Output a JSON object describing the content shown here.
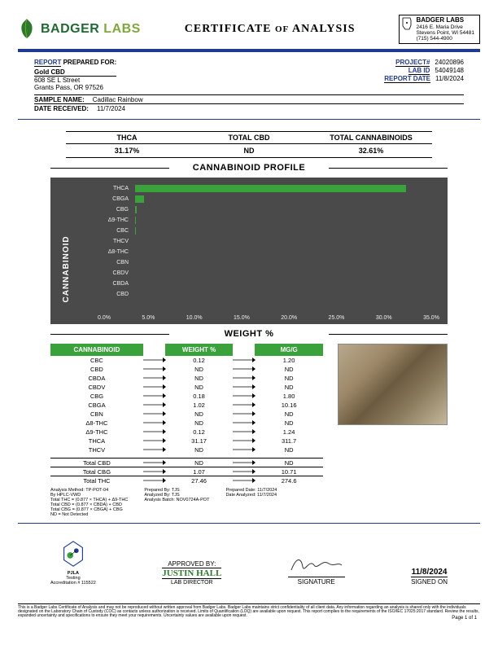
{
  "header": {
    "brand1": "BADGER",
    "brand2": "LABS",
    "title_pre": "CERTIFICATE",
    "title_of": "OF",
    "title_post": "ANALYSIS",
    "addr_name": "BADGER LABS",
    "addr_l1": "2416 E. Maria Drive",
    "addr_l2": "Stevens Point, WI 54481",
    "addr_l3": "(715) 544-4900",
    "colors": {
      "blue": "#1f3a93",
      "green": "#3aa23a"
    }
  },
  "report": {
    "label": "REPORT",
    "prepared": "PREPARED FOR:",
    "client": "Gold CBD",
    "addr1": "608 SE L Street",
    "addr2": "Grants Pass, OR 97526",
    "project_lab": "PROJECT#",
    "project_val": "24020896",
    "labid_lab": "LAB ID",
    "labid_val": "54049148",
    "date_lab": "REPORT DATE",
    "date_val": "11/8/2024",
    "sample_lab": "SAMPLE NAME:",
    "sample_val": "Cadillac Rainbow",
    "recv_lab": "DATE RECEIVED:",
    "recv_val": "11/7/2024"
  },
  "metrics": [
    {
      "h": "THCA",
      "v": "31.17%"
    },
    {
      "h": "TOTAL CBD",
      "v": "ND"
    },
    {
      "h": "TOTAL CANNABINOIDS",
      "v": "32.61%"
    }
  ],
  "chart": {
    "title": "CANNABINOID PROFILE",
    "ylabel": "CANNABINOID",
    "xlabel_title": "WEIGHT %",
    "xmax": 35,
    "xticks": [
      "0.0%",
      "5.0%",
      "10.0%",
      "15.0%",
      "20.0%",
      "25.0%",
      "30.0%",
      "35.0%"
    ],
    "bars": [
      {
        "label": "THCA",
        "value": 31.17
      },
      {
        "label": "CBGA",
        "value": 1.02
      },
      {
        "label": "CBG",
        "value": 0.18
      },
      {
        "label": "Δ9-THC",
        "value": 0.12
      },
      {
        "label": "CBC",
        "value": 0.12
      },
      {
        "label": "THCV",
        "value": 0
      },
      {
        "label": "Δ8-THC",
        "value": 0
      },
      {
        "label": "CBN",
        "value": 0
      },
      {
        "label": "CBDV",
        "value": 0
      },
      {
        "label": "CBDA",
        "value": 0
      },
      {
        "label": "CBD",
        "value": 0
      }
    ],
    "bar_color": "#3aa23a",
    "bg": "#4a4a4a"
  },
  "table": {
    "headers": [
      "CANNABINOID",
      "WEIGHT %",
      "MG/G"
    ],
    "rows": [
      [
        "CBC",
        "0.12",
        "1.20"
      ],
      [
        "CBD",
        "ND",
        "ND"
      ],
      [
        "CBDA",
        "ND",
        "ND"
      ],
      [
        "CBDV",
        "ND",
        "ND"
      ],
      [
        "CBG",
        "0.18",
        "1.80"
      ],
      [
        "CBGA",
        "1.02",
        "10.16"
      ],
      [
        "CBN",
        "ND",
        "ND"
      ],
      [
        "Δ8-THC",
        "ND",
        "ND"
      ],
      [
        "Δ9-THC",
        "0.12",
        "1.24"
      ],
      [
        "THCA",
        "31.17",
        "311.7"
      ],
      [
        "THCV",
        "ND",
        "ND"
      ]
    ],
    "totals": [
      [
        "Total CBD",
        "ND",
        "ND"
      ],
      [
        "Total CBG",
        "1.07",
        "10.71"
      ],
      [
        "Total THC",
        "27.46",
        "274.6"
      ]
    ]
  },
  "meta": {
    "l1": "Analysis Method: TP-POT-04",
    "l2": "By HPLC-VWD",
    "l3": "Total THC = (0.877 × THCA) + Δ9-THC",
    "l4": "Total CBD = (0.877 × CBDA) + CBD",
    "l5": "Total CBG = (0.877 × CBGA) + CBG",
    "l6": "ND = Not Detected",
    "prep_by_l": "Prepared By:",
    "prep_by_v": "TJS",
    "anal_by_l": "Analyzed By:",
    "anal_by_v": "TJS",
    "batch_l": "Analysis Batch:",
    "batch_v": "NOV0724A-POT",
    "prep_date_l": "Prepared Date:",
    "prep_date_v": "11/7/2024",
    "anal_date_l": "Date Analyzed:",
    "anal_date_v": "11/7/2024"
  },
  "footer": {
    "accr1": "PJLA",
    "accr2": "Testing",
    "accr3": "Accreditation # 115522",
    "approved": "APPROVED BY:",
    "name": "JUSTIN HALL",
    "role": "LAB DIRECTOR",
    "sig": "SIGNATURE",
    "signed": "SIGNED ON",
    "signed_date": "11/8/2024",
    "page": "Page 1 of 1"
  },
  "disclaimer": "This is a Badger Labs Certificate of Analysis and may not be reproduced without written approval from Badger Labs. Badger Labs maintains strict confidentiality of all client data. Any information regarding an analysis is shared only with the individuals designated on the Laboratory Chain of Custody (COC) as contacts unless authorization is received. Limits of Quantification (LOQ) are available upon request. This report complies to the requirements of the ISO/IEC 17025:2017 standard. Review the results, expanded uncertainty and specifications to ensure they meet your requirements. Uncertainty values are available upon request."
}
